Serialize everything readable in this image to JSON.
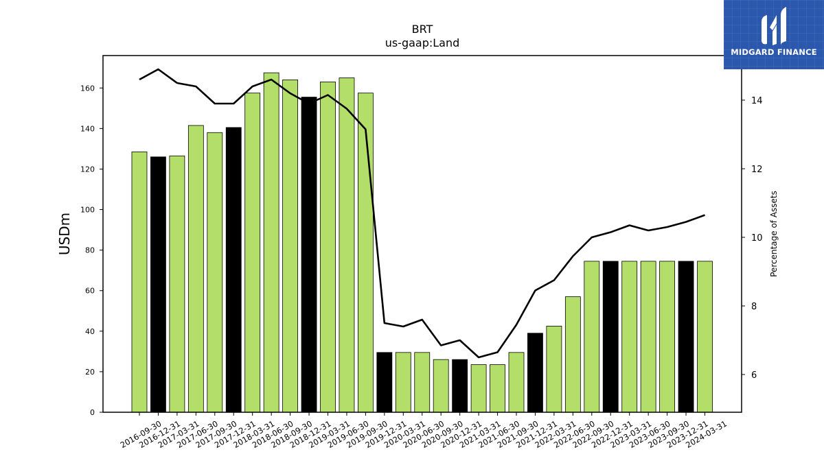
{
  "chart_data": {
    "type": "bar",
    "title": "BRT",
    "subtitle": "us-gaap:Land",
    "ylabel": "USDm",
    "y2label": "Percentage of Assets",
    "ylim": [
      0,
      176
    ],
    "y2lim": [
      4.9,
      15.3
    ],
    "yticks": [
      0,
      20,
      40,
      60,
      80,
      100,
      120,
      140,
      160
    ],
    "y2ticks": [
      6,
      8,
      10,
      12,
      14
    ],
    "categories": [
      "2016-09-30",
      "2016-12-31",
      "2017-03-31",
      "2017-06-30",
      "2017-09-30",
      "2017-12-31",
      "2018-03-31",
      "2018-06-30",
      "2018-09-30",
      "2018-12-31",
      "2019-03-31",
      "2019-06-30",
      "2019-09-30",
      "2019-12-31",
      "2020-03-31",
      "2020-06-30",
      "2020-09-30",
      "2020-12-31",
      "2021-03-31",
      "2021-06-30",
      "2021-09-30",
      "2021-12-31",
      "2022-03-31",
      "2022-06-30",
      "2022-09-30",
      "2022-12-31",
      "2023-03-31",
      "2023-06-30",
      "2023-09-30",
      "2023-12-31",
      "2024-03-31"
    ],
    "series": [
      {
        "type": "bar",
        "axis": "left",
        "values": [
          128.5,
          126,
          126.5,
          141.5,
          138,
          140.5,
          157.5,
          167.5,
          164,
          155.5,
          163,
          165,
          157.5,
          29.5,
          29.5,
          29.5,
          26,
          26,
          23.5,
          23.5,
          29.5,
          39,
          42.5,
          57,
          74.5,
          74.5,
          74.5,
          74.5,
          74.5,
          74.5,
          74.5
        ],
        "colors": [
          "#b3de69",
          "#000000",
          "#b3de69",
          "#b3de69",
          "#b3de69",
          "#000000",
          "#b3de69",
          "#b3de69",
          "#b3de69",
          "#000000",
          "#b3de69",
          "#b3de69",
          "#b3de69",
          "#000000",
          "#b3de69",
          "#b3de69",
          "#b3de69",
          "#000000",
          "#b3de69",
          "#b3de69",
          "#b3de69",
          "#000000",
          "#b3de69",
          "#b3de69",
          "#b3de69",
          "#000000",
          "#b3de69",
          "#b3de69",
          "#b3de69",
          "#000000",
          "#b3de69"
        ]
      },
      {
        "type": "line",
        "axis": "right",
        "color": "#000000",
        "values": [
          14.6,
          14.9,
          14.5,
          14.4,
          13.9,
          13.9,
          14.4,
          14.6,
          14.2,
          13.9,
          14.15,
          13.75,
          13.15,
          7.5,
          7.4,
          7.6,
          6.85,
          7.0,
          6.5,
          6.65,
          7.45,
          8.45,
          8.75,
          9.45,
          10.0,
          10.15,
          10.35,
          10.2,
          10.3,
          10.45,
          10.65
        ]
      }
    ],
    "legend": "none",
    "grid": false
  },
  "logo": {
    "text": "MIDGARD FINANCE",
    "bg_color": "#2b58ac"
  }
}
